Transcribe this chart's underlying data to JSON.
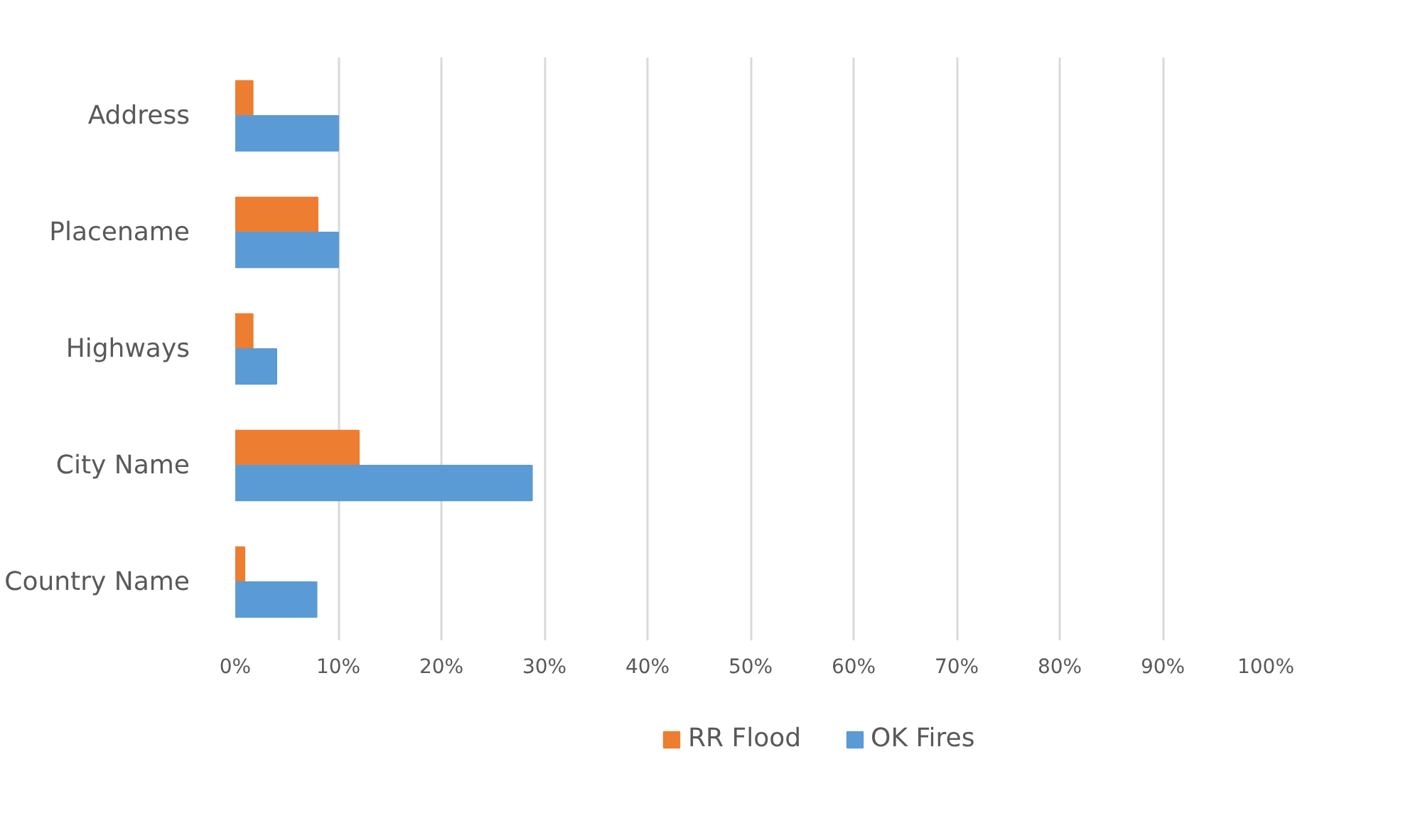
{
  "chart_data": {
    "type": "bar",
    "orientation": "horizontal",
    "categories": [
      "Address",
      "Placename",
      "Highways",
      "City Name",
      "Country Name"
    ],
    "series": [
      {
        "name": "RR Flood",
        "color": "#ed7d31",
        "values": [
          1.7,
          8,
          1.7,
          12,
          0.9
        ]
      },
      {
        "name": "OK Fires",
        "color": "#5b9bd5",
        "values": [
          10,
          10,
          4,
          28.8,
          7.9
        ]
      }
    ],
    "xlim": [
      0,
      100
    ],
    "xticks": [
      {
        "value": 0,
        "label": "0%"
      },
      {
        "value": 10,
        "label": "10%"
      },
      {
        "value": 20,
        "label": "20%"
      },
      {
        "value": 30,
        "label": "30%"
      },
      {
        "value": 40,
        "label": "40%"
      },
      {
        "value": 50,
        "label": "50%"
      },
      {
        "value": 60,
        "label": "60%"
      },
      {
        "value": 70,
        "label": "70%"
      },
      {
        "value": 80,
        "label": "80%"
      },
      {
        "value": 90,
        "label": "90%"
      },
      {
        "value": 100,
        "label": "100%"
      }
    ],
    "grid": "x",
    "legend": "bottom"
  }
}
